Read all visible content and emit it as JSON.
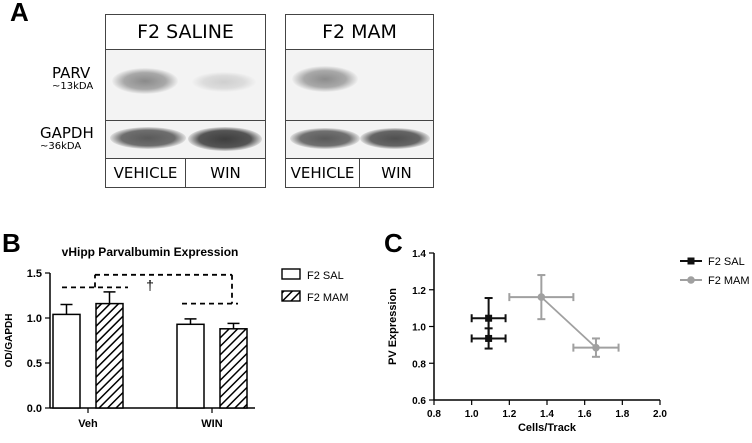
{
  "panels": {
    "a": "A",
    "b": "B",
    "c": "C"
  },
  "blots": [
    {
      "title": "F2 SALINE",
      "lanes": [
        "VEHICLE",
        "WIN"
      ]
    },
    {
      "title": "F2 MAM",
      "lanes": [
        "VEHICLE",
        "WIN"
      ]
    }
  ],
  "row_labels": {
    "parv": {
      "name": "PARV",
      "size": "~13kDA"
    },
    "gapdh": {
      "name": "GAPDH",
      "size": "~36kDA"
    }
  },
  "chart_data": [
    {
      "type": "bar",
      "title": "vHipp Parvalbumin  Expression",
      "categories": [
        "Veh",
        "WIN"
      ],
      "ylabel": "OD/GAPDH",
      "xlabel": "",
      "ylim": [
        0,
        1.5
      ],
      "yticks": [
        "0.0",
        "0.5",
        "1.0",
        "1.5"
      ],
      "series": [
        {
          "name": "F2 SAL",
          "values": [
            1.04,
            0.93
          ],
          "errors": [
            0.11,
            0.06
          ],
          "fill": "open"
        },
        {
          "name": "F2 MAM",
          "values": [
            1.16,
            0.88
          ],
          "errors": [
            0.13,
            0.06
          ],
          "fill": "hatched"
        }
      ],
      "annotation": "†",
      "legend_position": "right"
    },
    {
      "type": "scatter",
      "xlabel": "Cells/Track",
      "ylabel": "PV  Expression",
      "xlim": [
        0.8,
        2.0
      ],
      "ylim": [
        0.6,
        1.4
      ],
      "xticks": [
        "0.8",
        "1.0",
        "1.2",
        "1.4",
        "1.6",
        "1.8",
        "2.0"
      ],
      "yticks": [
        "0.6",
        "0.8",
        "1.0",
        "1.2",
        "1.4"
      ],
      "series": [
        {
          "name": "F2 SAL",
          "color": "#111111",
          "marker": "square",
          "points": [
            {
              "x": 1.09,
              "y": 1.045,
              "xerr": 0.09,
              "yerr": 0.11
            },
            {
              "x": 1.09,
              "y": 0.935,
              "xerr": 0.09,
              "yerr": 0.055
            }
          ]
        },
        {
          "name": "F2 MAM",
          "color": "#a0a0a0",
          "marker": "circle",
          "points": [
            {
              "x": 1.37,
              "y": 1.16,
              "xerr": 0.17,
              "yerr": 0.12
            },
            {
              "x": 1.66,
              "y": 0.885,
              "xerr": 0.12,
              "yerr": 0.05
            }
          ]
        }
      ],
      "legend_position": "top-right"
    }
  ]
}
